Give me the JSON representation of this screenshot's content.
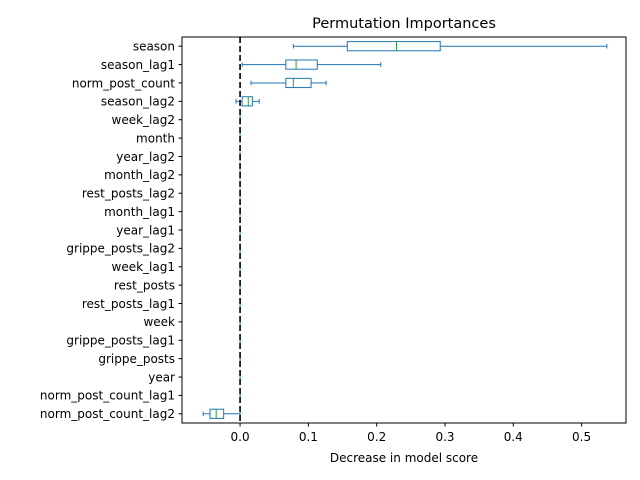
{
  "chart_data": {
    "type": "boxplot",
    "orientation": "horizontal",
    "title": "Permutation Importances",
    "xlabel": "Decrease in model score",
    "ylabel": "",
    "xlim": [
      -0.085,
      0.565
    ],
    "xticks": [
      0.0,
      0.1,
      0.2,
      0.3,
      0.4,
      0.5
    ],
    "xtick_labels": [
      "0.0",
      "0.1",
      "0.2",
      "0.3",
      "0.4",
      "0.5"
    ],
    "reference_line": {
      "x": 0.0,
      "style": "dashed",
      "color": "#000000"
    },
    "box_color": "#1f77b4",
    "median_color": "#2ca02c",
    "grid": false,
    "features": [
      {
        "name": "season",
        "whisker_low": 0.078,
        "q1": 0.157,
        "median": 0.229,
        "q3": 0.293,
        "whisker_high": 0.537
      },
      {
        "name": "season_lag1",
        "whisker_low": 0.003,
        "q1": 0.067,
        "median": 0.082,
        "q3": 0.113,
        "whisker_high": 0.206
      },
      {
        "name": "norm_post_count",
        "whisker_low": 0.016,
        "q1": 0.067,
        "median": 0.078,
        "q3": 0.104,
        "whisker_high": 0.126
      },
      {
        "name": "season_lag2",
        "whisker_low": -0.006,
        "q1": 0.003,
        "median": 0.012,
        "q3": 0.018,
        "whisker_high": 0.028
      },
      {
        "name": "week_lag2",
        "whisker_low": 0.0,
        "q1": 0.0,
        "median": 0.0,
        "q3": 0.0,
        "whisker_high": 0.0
      },
      {
        "name": "month",
        "whisker_low": 0.0,
        "q1": 0.0,
        "median": 0.0,
        "q3": 0.0,
        "whisker_high": 0.0
      },
      {
        "name": "year_lag2",
        "whisker_low": 0.0,
        "q1": 0.0,
        "median": 0.0,
        "q3": 0.0,
        "whisker_high": 0.0
      },
      {
        "name": "month_lag2",
        "whisker_low": 0.0,
        "q1": 0.0,
        "median": 0.0,
        "q3": 0.0,
        "whisker_high": 0.0
      },
      {
        "name": "rest_posts_lag2",
        "whisker_low": 0.0,
        "q1": 0.0,
        "median": 0.0,
        "q3": 0.0,
        "whisker_high": 0.0
      },
      {
        "name": "month_lag1",
        "whisker_low": 0.0,
        "q1": 0.0,
        "median": 0.0,
        "q3": 0.0,
        "whisker_high": 0.0
      },
      {
        "name": "year_lag1",
        "whisker_low": 0.0,
        "q1": 0.0,
        "median": 0.0,
        "q3": 0.0,
        "whisker_high": 0.0
      },
      {
        "name": "grippe_posts_lag2",
        "whisker_low": 0.0,
        "q1": 0.0,
        "median": 0.0,
        "q3": 0.0,
        "whisker_high": 0.0
      },
      {
        "name": "week_lag1",
        "whisker_low": 0.0,
        "q1": 0.0,
        "median": 0.0,
        "q3": 0.0,
        "whisker_high": 0.0
      },
      {
        "name": "rest_posts",
        "whisker_low": 0.0,
        "q1": 0.0,
        "median": 0.0,
        "q3": 0.0,
        "whisker_high": 0.0
      },
      {
        "name": "rest_posts_lag1",
        "whisker_low": 0.0,
        "q1": 0.0,
        "median": 0.0,
        "q3": 0.0,
        "whisker_high": 0.0
      },
      {
        "name": "week",
        "whisker_low": 0.0,
        "q1": 0.0,
        "median": 0.0,
        "q3": 0.0,
        "whisker_high": 0.0
      },
      {
        "name": "grippe_posts_lag1",
        "whisker_low": 0.0,
        "q1": 0.0,
        "median": 0.0,
        "q3": 0.0,
        "whisker_high": 0.0
      },
      {
        "name": "grippe_posts",
        "whisker_low": 0.0,
        "q1": 0.0,
        "median": 0.0,
        "q3": 0.0,
        "whisker_high": 0.0
      },
      {
        "name": "year",
        "whisker_low": 0.0,
        "q1": 0.0,
        "median": 0.0,
        "q3": 0.0,
        "whisker_high": 0.0
      },
      {
        "name": "norm_post_count_lag1",
        "whisker_low": 0.0,
        "q1": 0.0,
        "median": 0.0,
        "q3": 0.0,
        "whisker_high": 0.0
      },
      {
        "name": "norm_post_count_lag2",
        "whisker_low": -0.054,
        "q1": -0.044,
        "median": -0.035,
        "q3": -0.024,
        "whisker_high": 0.0
      }
    ]
  }
}
